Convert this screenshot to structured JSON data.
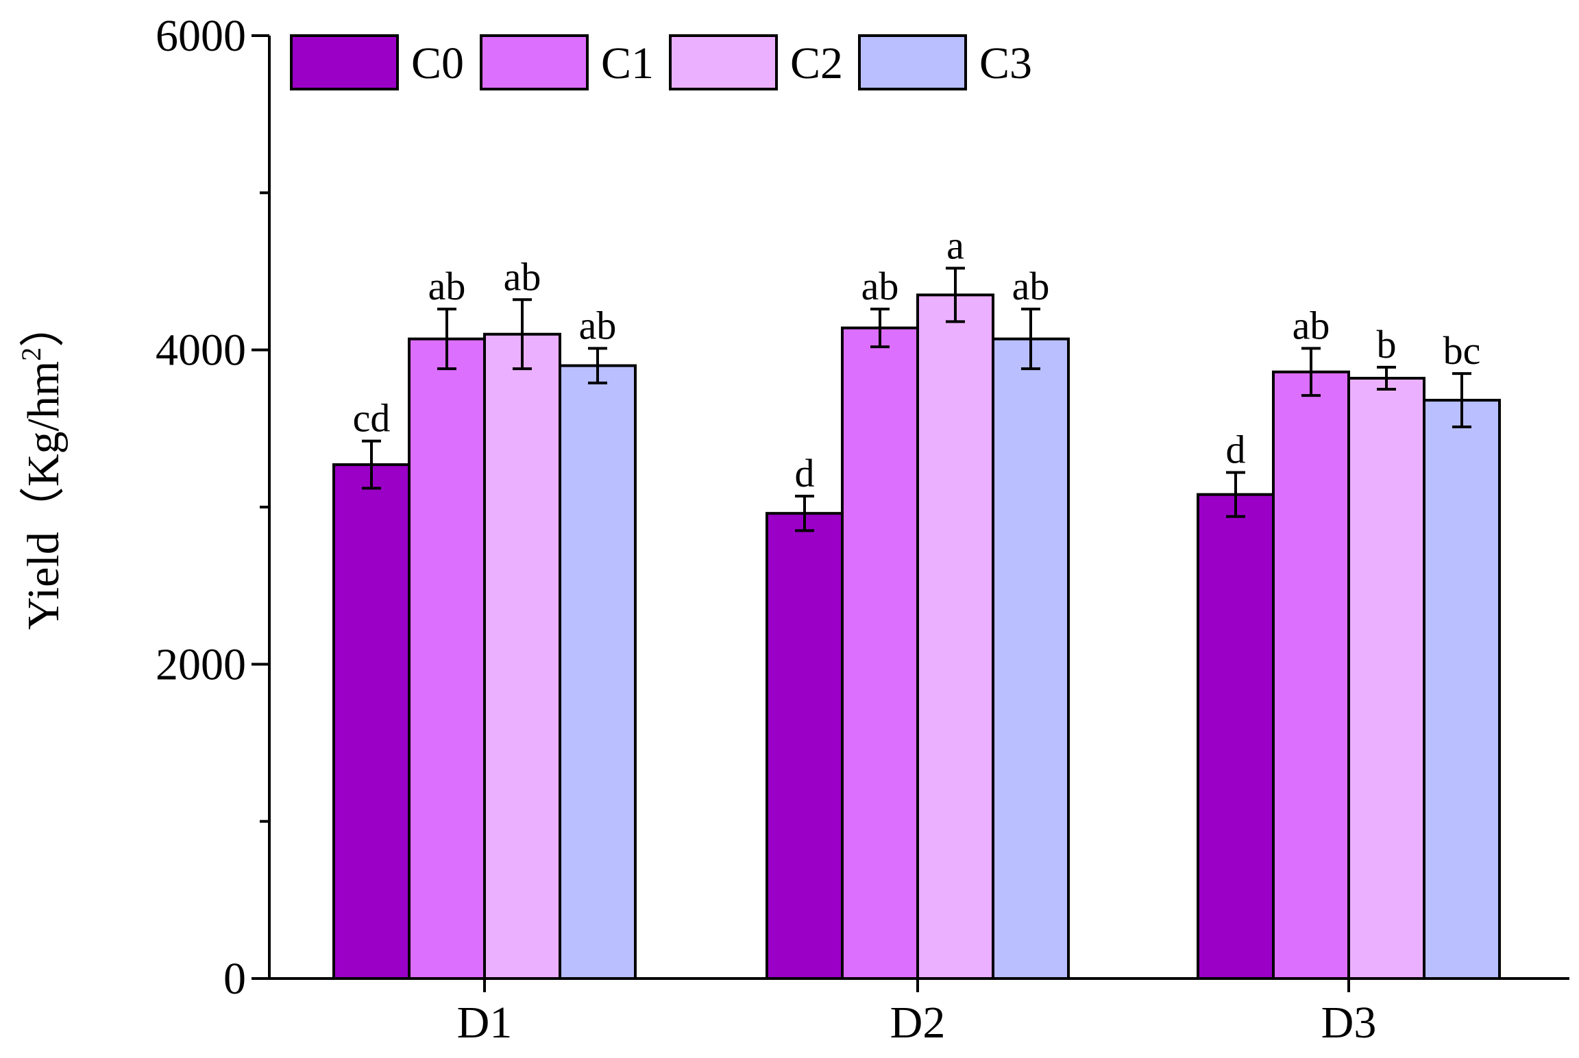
{
  "chart_data": {
    "type": "bar",
    "title": "",
    "xlabel": "",
    "ylabel": "Yield",
    "ylabel_unit_prefix": "（Kg/hm",
    "ylabel_unit_sup": "2",
    "ylabel_unit_suffix": "）",
    "ylim": [
      0,
      6000
    ],
    "yticks": [
      0,
      2000,
      4000,
      6000
    ],
    "yticks_minor": [
      1000,
      3000,
      5000
    ],
    "legend_position": "top-left",
    "grid": false,
    "categories": [
      "D1",
      "D2",
      "D3"
    ],
    "series": [
      {
        "name": "C0",
        "color": "#9B00C7",
        "values": [
          3270,
          2960,
          3080
        ],
        "errors": [
          150,
          110,
          140
        ],
        "sig": [
          "cd",
          "d",
          "d"
        ]
      },
      {
        "name": "C1",
        "color": "#DD6FFF",
        "values": [
          4070,
          4140,
          3860
        ],
        "errors": [
          190,
          120,
          150
        ],
        "sig": [
          "ab",
          "ab",
          "ab"
        ]
      },
      {
        "name": "C2",
        "color": "#EBB0FF",
        "values": [
          4100,
          4350,
          3820
        ],
        "errors": [
          220,
          170,
          70
        ],
        "sig": [
          "ab",
          "a",
          "b"
        ]
      },
      {
        "name": "C3",
        "color": "#B9BFFF",
        "values": [
          3900,
          4070,
          3680
        ],
        "errors": [
          110,
          190,
          170
        ],
        "sig": [
          "ab",
          "ab",
          "bc"
        ]
      }
    ]
  }
}
